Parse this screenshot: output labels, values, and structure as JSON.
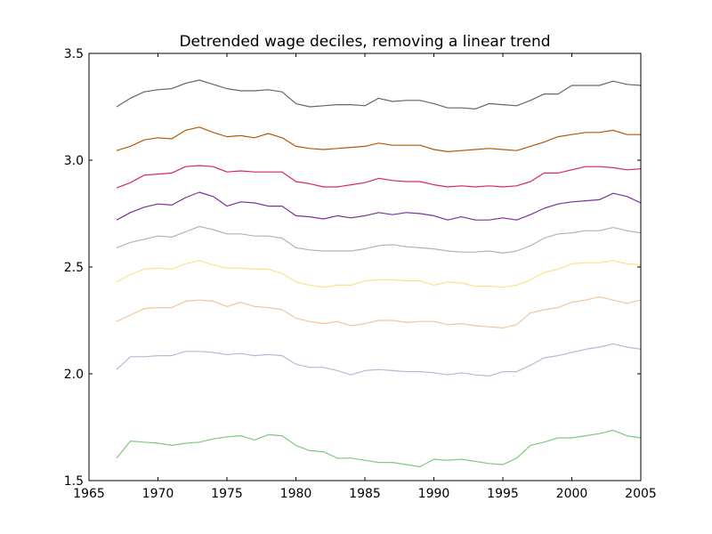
{
  "chart_data": {
    "type": "line",
    "title": "Detrended wage deciles, removing a linear trend",
    "xlabel": "",
    "ylabel": "",
    "xlim": [
      1965,
      2005
    ],
    "ylim": [
      1.5,
      3.5
    ],
    "xticks": [
      1965,
      1970,
      1975,
      1980,
      1985,
      1990,
      1995,
      2000,
      2005
    ],
    "yticks": [
      1.5,
      2.0,
      2.5,
      3.0,
      3.5
    ],
    "xtick_labels": [
      "1965",
      "1970",
      "1975",
      "1980",
      "1985",
      "1990",
      "1995",
      "2000",
      "2005"
    ],
    "ytick_labels": [
      "1.5",
      "2.0",
      "2.5",
      "3.0",
      "3.5"
    ],
    "grid": false,
    "x": [
      1967,
      1968,
      1969,
      1970,
      1971,
      1972,
      1973,
      1974,
      1975,
      1976,
      1977,
      1978,
      1979,
      1980,
      1981,
      1982,
      1983,
      1984,
      1985,
      1986,
      1987,
      1988,
      1989,
      1990,
      1991,
      1992,
      1993,
      1994,
      1995,
      1996,
      1997,
      1998,
      1999,
      2000,
      2001,
      2002,
      2003,
      2004,
      2005
    ],
    "series": [
      {
        "color": "#666666",
        "values": [
          3.25,
          3.29,
          3.32,
          3.33,
          3.335,
          3.36,
          3.375,
          3.355,
          3.335,
          3.325,
          3.325,
          3.33,
          3.32,
          3.265,
          3.25,
          3.255,
          3.26,
          3.26,
          3.255,
          3.29,
          3.275,
          3.28,
          3.28,
          3.265,
          3.245,
          3.245,
          3.24,
          3.265,
          3.26,
          3.255,
          3.28,
          3.31,
          3.31,
          3.35,
          3.35,
          3.35,
          3.37,
          3.355,
          3.35
        ]
      },
      {
        "color": "#b35806",
        "values": [
          3.045,
          3.065,
          3.095,
          3.105,
          3.1,
          3.14,
          3.155,
          3.13,
          3.11,
          3.115,
          3.105,
          3.125,
          3.105,
          3.065,
          3.055,
          3.05,
          3.055,
          3.06,
          3.065,
          3.08,
          3.07,
          3.07,
          3.07,
          3.05,
          3.04,
          3.045,
          3.05,
          3.055,
          3.05,
          3.045,
          3.065,
          3.085,
          3.11,
          3.12,
          3.13,
          3.13,
          3.14,
          3.12,
          3.12
        ]
      },
      {
        "color": "#d6246f",
        "values": [
          2.87,
          2.895,
          2.93,
          2.935,
          2.94,
          2.97,
          2.975,
          2.97,
          2.945,
          2.95,
          2.945,
          2.945,
          2.945,
          2.9,
          2.89,
          2.875,
          2.875,
          2.885,
          2.895,
          2.915,
          2.905,
          2.9,
          2.9,
          2.885,
          2.875,
          2.88,
          2.875,
          2.88,
          2.875,
          2.88,
          2.9,
          2.94,
          2.94,
          2.955,
          2.97,
          2.97,
          2.965,
          2.955,
          2.96
        ]
      },
      {
        "color": "#7b3294",
        "values": [
          2.72,
          2.755,
          2.78,
          2.795,
          2.79,
          2.825,
          2.85,
          2.83,
          2.785,
          2.805,
          2.8,
          2.785,
          2.785,
          2.74,
          2.735,
          2.725,
          2.74,
          2.73,
          2.74,
          2.755,
          2.745,
          2.755,
          2.75,
          2.74,
          2.72,
          2.735,
          2.72,
          2.72,
          2.73,
          2.72,
          2.745,
          2.775,
          2.795,
          2.805,
          2.81,
          2.815,
          2.845,
          2.83,
          2.8
        ]
      },
      {
        "color": "#a4bbb3",
        "values": [
          2.59,
          2.615,
          2.63,
          2.645,
          2.64,
          2.665,
          2.69,
          2.675,
          2.655,
          2.655,
          2.645,
          2.645,
          2.635,
          2.59,
          2.58,
          2.575,
          2.575,
          2.575,
          2.585,
          2.6,
          2.605,
          2.595,
          2.59,
          2.585,
          2.575,
          2.57,
          2.57,
          2.575,
          2.565,
          2.575,
          2.6,
          2.635,
          2.655,
          2.66,
          2.67,
          2.67,
          2.685,
          2.67,
          2.66
        ]
      },
      {
        "color": "#fee08b",
        "values": [
          2.43,
          2.465,
          2.49,
          2.495,
          2.49,
          2.515,
          2.53,
          2.51,
          2.495,
          2.495,
          2.49,
          2.49,
          2.47,
          2.43,
          2.415,
          2.405,
          2.415,
          2.415,
          2.435,
          2.44,
          2.44,
          2.435,
          2.435,
          2.415,
          2.43,
          2.425,
          2.41,
          2.41,
          2.405,
          2.415,
          2.44,
          2.475,
          2.49,
          2.515,
          2.52,
          2.52,
          2.53,
          2.515,
          2.51
        ]
      },
      {
        "color": "#f4c49b",
        "values": [
          2.245,
          2.275,
          2.305,
          2.31,
          2.31,
          2.34,
          2.345,
          2.34,
          2.315,
          2.335,
          2.315,
          2.31,
          2.3,
          2.26,
          2.245,
          2.235,
          2.245,
          2.225,
          2.235,
          2.25,
          2.25,
          2.24,
          2.245,
          2.245,
          2.23,
          2.235,
          2.225,
          2.22,
          2.215,
          2.23,
          2.285,
          2.3,
          2.31,
          2.335,
          2.345,
          2.36,
          2.345,
          2.33,
          2.345
        ]
      },
      {
        "color": "#bcb7d4",
        "values": [
          2.02,
          2.08,
          2.08,
          2.085,
          2.085,
          2.105,
          2.105,
          2.1,
          2.09,
          2.095,
          2.085,
          2.09,
          2.085,
          2.045,
          2.03,
          2.03,
          2.015,
          1.995,
          2.015,
          2.02,
          2.015,
          2.01,
          2.01,
          2.005,
          1.995,
          2.005,
          1.995,
          1.99,
          2.01,
          2.01,
          2.04,
          2.075,
          2.085,
          2.1,
          2.115,
          2.125,
          2.14,
          2.125,
          2.115
        ]
      },
      {
        "color": "#7fc97f",
        "values": [
          1.605,
          1.685,
          1.68,
          1.675,
          1.665,
          1.675,
          1.68,
          1.695,
          1.705,
          1.71,
          1.69,
          1.715,
          1.71,
          1.665,
          1.64,
          1.635,
          1.605,
          1.605,
          1.595,
          1.585,
          1.585,
          1.575,
          1.565,
          1.6,
          1.595,
          1.6,
          1.59,
          1.58,
          1.575,
          1.605,
          1.665,
          1.68,
          1.7,
          1.7,
          1.71,
          1.72,
          1.735,
          1.71,
          1.7
        ]
      }
    ]
  }
}
